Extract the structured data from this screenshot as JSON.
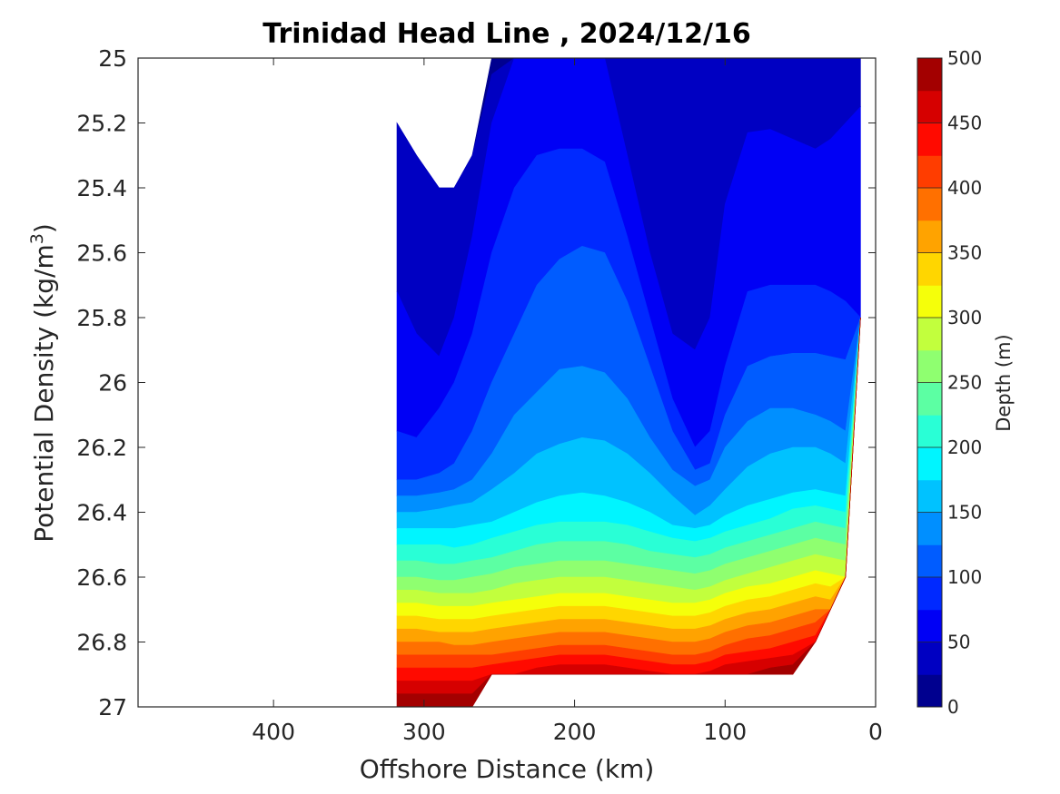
{
  "chart_data": {
    "type": "filled-contour",
    "title": "Trinidad Head Line , 2024/12/16",
    "xlabel": "Offshore Distance (km)",
    "ylabel": "Potential Density (kg/m",
    "ylabel_superscript": "3",
    "ylabel_close": ")",
    "x_reversed": true,
    "y_reversed": true,
    "xlim": [
      490,
      0
    ],
    "ylim": [
      25,
      27
    ],
    "xticks": [
      400,
      300,
      200,
      100,
      0
    ],
    "yticks": [
      25,
      25.2,
      25.4,
      25.6,
      25.8,
      26,
      26.2,
      26.4,
      26.6,
      26.8,
      27
    ],
    "ytick_labels": [
      "25",
      "25.2",
      "25.4",
      "25.6",
      "25.8",
      "26",
      "26.2",
      "26.4",
      "26.6",
      "26.8",
      "27"
    ],
    "colorbar": {
      "label": "Depth (m)",
      "min": 0,
      "max": 500,
      "step": 25,
      "ticks": [
        0,
        50,
        100,
        150,
        200,
        250,
        300,
        350,
        400,
        450,
        500
      ],
      "colormap": [
        "#00008F",
        "#0000C2",
        "#0000F5",
        "#0029FF",
        "#005CFF",
        "#008FFF",
        "#00C2FF",
        "#00F5FF",
        "#29FFD6",
        "#5CFFA3",
        "#8FFF70",
        "#C2FF3D",
        "#F5FF0A",
        "#FFD600",
        "#FFA300",
        "#FF7000",
        "#FF3D00",
        "#FF0A00",
        "#D60000",
        "#A30000"
      ]
    },
    "z_field": {
      "columns_x_km": [
        318,
        305,
        290,
        280,
        268,
        255,
        240,
        225,
        210,
        195,
        180,
        165,
        150,
        135,
        120,
        110,
        100,
        85,
        70,
        55,
        40,
        30,
        20,
        10
      ],
      "top_density": [
        25.2,
        25.3,
        25.4,
        25.4,
        25.3,
        25.0,
        25.0,
        25.0,
        25.0,
        25.0,
        25.0,
        25.0,
        25.0,
        25.0,
        25.0,
        25.0,
        25.0,
        25.0,
        25.0,
        25.0,
        25.0,
        25.0,
        25.0,
        25.0
      ],
      "bottom_density": [
        27.0,
        27.0,
        27.0,
        27.0,
        27.0,
        26.9,
        26.9,
        26.9,
        26.9,
        26.9,
        26.9,
        26.9,
        26.9,
        26.9,
        26.9,
        26.9,
        26.9,
        26.9,
        26.9,
        26.9,
        26.8,
        26.7,
        26.6,
        25.8
      ],
      "isopycnal_depth_contours_m": [
        {
          "depth": 25,
          "density": [
            25.2,
            25.3,
            25.4,
            25.4,
            25.3,
            25.05,
            25.0,
            25.0,
            25.0,
            25.0,
            25.0,
            25.0,
            25.0,
            25.0,
            25.0,
            25.0,
            25.0,
            25.0,
            25.0,
            25.0,
            25.0,
            25.0,
            25.0,
            25.0
          ]
        },
        {
          "depth": 50,
          "density": [
            25.72,
            25.85,
            25.92,
            25.8,
            25.55,
            25.2,
            25.0,
            25.0,
            25.0,
            25.0,
            25.0,
            25.3,
            25.6,
            25.85,
            25.9,
            25.8,
            25.45,
            25.23,
            25.22,
            25.25,
            25.28,
            25.25,
            25.2,
            25.15
          ]
        },
        {
          "depth": 75,
          "density": [
            26.15,
            26.17,
            26.08,
            26.0,
            25.85,
            25.6,
            25.4,
            25.3,
            25.28,
            25.28,
            25.32,
            25.55,
            25.8,
            26.05,
            26.2,
            26.15,
            25.95,
            25.72,
            25.7,
            25.7,
            25.7,
            25.72,
            25.75,
            25.8
          ]
        },
        {
          "depth": 100,
          "density": [
            26.3,
            26.3,
            26.28,
            26.25,
            26.15,
            26.0,
            25.85,
            25.7,
            25.62,
            25.58,
            25.6,
            25.75,
            25.95,
            26.15,
            26.27,
            26.25,
            26.1,
            25.95,
            25.92,
            25.91,
            25.91,
            25.92,
            25.93,
            25.9
          ]
        },
        {
          "depth": 125,
          "density": [
            26.35,
            26.35,
            26.34,
            26.33,
            26.3,
            26.22,
            26.1,
            26.03,
            25.96,
            25.95,
            25.97,
            26.05,
            26.17,
            26.27,
            26.32,
            26.3,
            26.2,
            26.12,
            26.08,
            26.08,
            26.1,
            26.12,
            26.15,
            26.2
          ]
        },
        {
          "depth": 150,
          "density": [
            26.4,
            26.4,
            26.39,
            26.38,
            26.37,
            26.33,
            26.28,
            26.22,
            26.19,
            26.17,
            26.18,
            26.22,
            26.28,
            26.35,
            26.41,
            26.38,
            26.33,
            26.26,
            26.22,
            26.2,
            26.2,
            26.22,
            26.25,
            26.28
          ]
        },
        {
          "depth": 175,
          "density": [
            26.45,
            26.45,
            26.45,
            26.45,
            26.44,
            26.43,
            26.4,
            26.37,
            26.35,
            26.34,
            26.35,
            26.37,
            26.4,
            26.44,
            26.45,
            26.44,
            26.41,
            26.38,
            26.36,
            26.34,
            26.33,
            26.34,
            26.35,
            26.37
          ]
        },
        {
          "depth": 200,
          "density": [
            26.5,
            26.5,
            26.5,
            26.51,
            26.5,
            26.48,
            26.46,
            26.44,
            26.43,
            26.43,
            26.43,
            26.44,
            26.46,
            26.48,
            26.49,
            26.48,
            26.46,
            26.44,
            26.42,
            26.39,
            26.38,
            26.39,
            26.4,
            26.42
          ]
        },
        {
          "depth": 225,
          "density": [
            26.55,
            26.55,
            26.56,
            26.56,
            26.55,
            26.54,
            26.52,
            26.5,
            26.49,
            26.49,
            26.49,
            26.5,
            26.52,
            26.53,
            26.54,
            26.53,
            26.51,
            26.49,
            26.47,
            26.45,
            26.43,
            26.44,
            26.45,
            26.47
          ]
        },
        {
          "depth": 250,
          "density": [
            26.6,
            26.6,
            26.61,
            26.61,
            26.6,
            26.59,
            26.57,
            26.56,
            26.55,
            26.55,
            26.55,
            26.56,
            26.57,
            26.58,
            26.59,
            26.58,
            26.56,
            26.54,
            26.52,
            26.5,
            26.48,
            26.49,
            26.5,
            26.52
          ]
        },
        {
          "depth": 275,
          "density": [
            26.64,
            26.64,
            26.65,
            26.65,
            26.65,
            26.64,
            26.62,
            26.61,
            26.6,
            26.6,
            26.6,
            26.61,
            26.62,
            26.63,
            26.64,
            26.63,
            26.61,
            26.59,
            26.57,
            26.55,
            26.53,
            26.54,
            26.55,
            26.57
          ]
        },
        {
          "depth": 300,
          "density": [
            26.68,
            26.68,
            26.69,
            26.69,
            26.69,
            26.68,
            26.67,
            26.66,
            26.65,
            26.65,
            26.65,
            26.66,
            26.67,
            26.68,
            26.68,
            26.67,
            26.65,
            26.63,
            26.62,
            26.6,
            26.58,
            26.59,
            26.6,
            26.61
          ]
        },
        {
          "depth": 325,
          "density": [
            26.72,
            26.72,
            26.73,
            26.73,
            26.73,
            26.72,
            26.71,
            26.7,
            26.69,
            26.69,
            26.69,
            26.7,
            26.71,
            26.72,
            26.72,
            26.71,
            26.69,
            26.67,
            26.66,
            26.64,
            26.62,
            26.63,
            26.64,
            26.65
          ]
        },
        {
          "depth": 350,
          "density": [
            26.76,
            26.76,
            26.77,
            26.77,
            26.77,
            26.76,
            26.75,
            26.74,
            26.73,
            26.73,
            26.73,
            26.74,
            26.75,
            26.76,
            26.76,
            26.75,
            26.73,
            26.71,
            26.7,
            26.68,
            26.66,
            26.67,
            26.68,
            26.69
          ]
        },
        {
          "depth": 375,
          "density": [
            26.8,
            26.8,
            26.8,
            26.81,
            26.81,
            26.8,
            26.79,
            26.78,
            26.77,
            26.77,
            26.77,
            26.78,
            26.79,
            26.8,
            26.8,
            26.79,
            26.77,
            26.75,
            26.74,
            26.72,
            26.7,
            26.71,
            26.72,
            26.73
          ]
        },
        {
          "depth": 400,
          "density": [
            26.84,
            26.84,
            26.84,
            26.84,
            26.84,
            26.84,
            26.83,
            26.82,
            26.81,
            26.81,
            26.81,
            26.82,
            26.83,
            26.84,
            26.84,
            26.83,
            26.81,
            26.79,
            26.78,
            26.76,
            26.74,
            26.75,
            26.76,
            26.77
          ]
        },
        {
          "depth": 425,
          "density": [
            26.88,
            26.88,
            26.88,
            26.88,
            26.88,
            26.87,
            26.86,
            26.85,
            26.84,
            26.84,
            26.84,
            26.85,
            26.86,
            26.87,
            26.87,
            26.86,
            26.84,
            26.83,
            26.82,
            26.8,
            26.78,
            26.79,
            26.8,
            26.81
          ]
        },
        {
          "depth": 450,
          "density": [
            26.92,
            26.92,
            26.92,
            26.92,
            26.92,
            26.9,
            26.9,
            26.88,
            26.87,
            26.87,
            26.87,
            26.88,
            26.89,
            26.9,
            26.9,
            26.89,
            26.87,
            26.86,
            26.85,
            26.84,
            26.82,
            26.83,
            26.84,
            26.85
          ]
        },
        {
          "depth": 475,
          "density": [
            26.96,
            26.96,
            26.96,
            26.96,
            26.96,
            26.9,
            26.9,
            26.9,
            26.9,
            26.9,
            26.9,
            26.9,
            26.9,
            26.9,
            26.9,
            26.9,
            26.9,
            26.9,
            26.88,
            26.87,
            26.86,
            26.86,
            26.87,
            26.88
          ]
        }
      ]
    }
  }
}
